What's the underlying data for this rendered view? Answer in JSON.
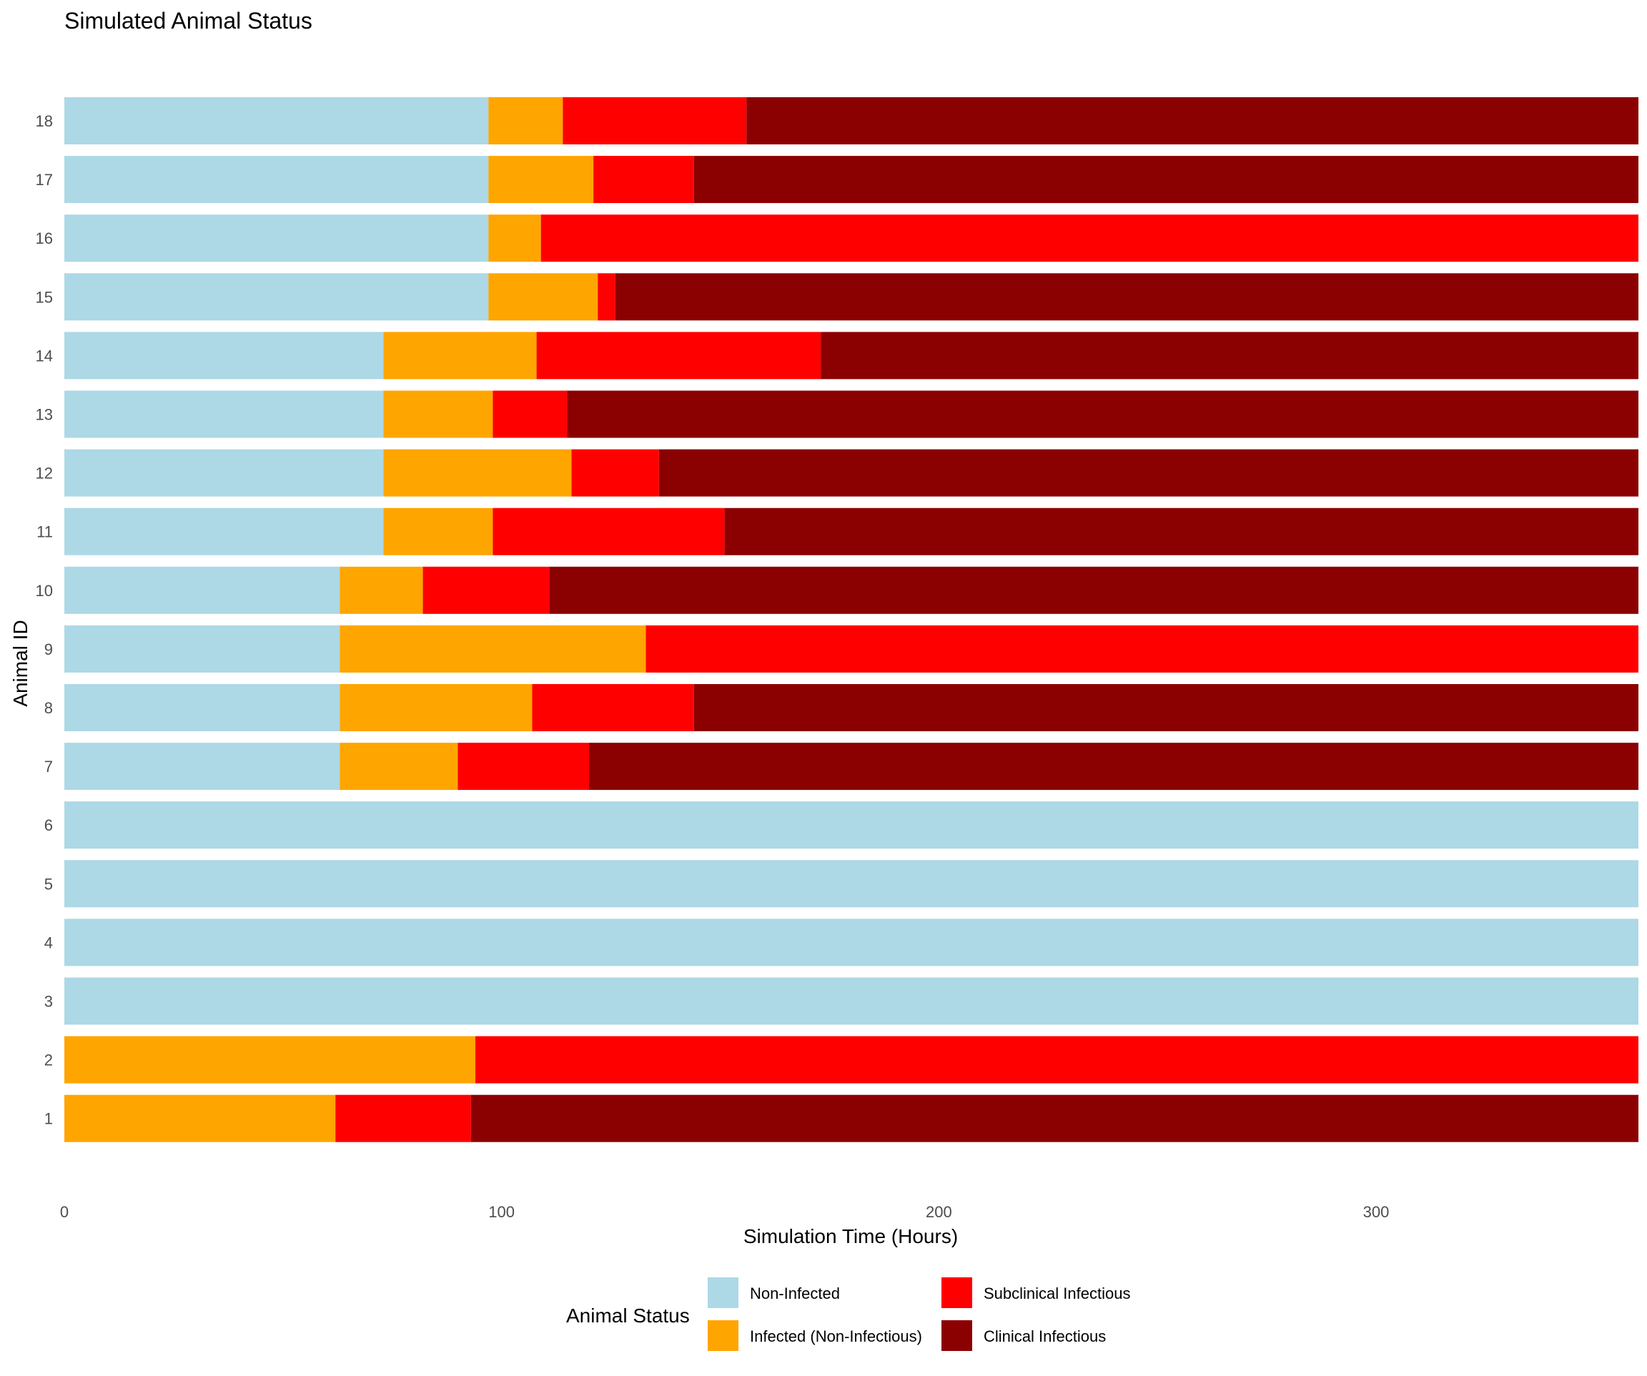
{
  "chart_data": {
    "type": "bar",
    "orientation": "horizontal",
    "stacked": true,
    "title": "Simulated Animal Status",
    "xlabel": "Simulation Time (Hours)",
    "ylabel": "Animal ID",
    "xlim": [
      0,
      360
    ],
    "xticks": [
      0,
      100,
      200,
      300
    ],
    "grid": false,
    "legend": {
      "title": "Animal Status",
      "placement": "bottom",
      "entries": [
        {
          "key": "non_infected",
          "label": "Non-Infected",
          "color": "#ADD8E6"
        },
        {
          "key": "infected_non_infectious",
          "label": "Infected (Non-Infectious)",
          "color": "#FFA500"
        },
        {
          "key": "subclinical_infectious",
          "label": "Subclinical Infectious",
          "color": "#FF0000"
        },
        {
          "key": "clinical_infectious",
          "label": "Clinical Infectious",
          "color": "#8B0000"
        }
      ]
    },
    "categories": [
      "1",
      "2",
      "3",
      "4",
      "5",
      "6",
      "7",
      "8",
      "9",
      "10",
      "11",
      "12",
      "13",
      "14",
      "15",
      "16",
      "17",
      "18"
    ],
    "animals": [
      {
        "id": "1",
        "segments": [
          {
            "status": "infected_non_infectious",
            "start": 0,
            "end": 62
          },
          {
            "status": "subclinical_infectious",
            "start": 62,
            "end": 93
          },
          {
            "status": "clinical_infectious",
            "start": 93,
            "end": 360
          }
        ]
      },
      {
        "id": "2",
        "segments": [
          {
            "status": "infected_non_infectious",
            "start": 0,
            "end": 94
          },
          {
            "status": "subclinical_infectious",
            "start": 94,
            "end": 360
          }
        ]
      },
      {
        "id": "3",
        "segments": [
          {
            "status": "non_infected",
            "start": 0,
            "end": 360
          }
        ]
      },
      {
        "id": "4",
        "segments": [
          {
            "status": "non_infected",
            "start": 0,
            "end": 360
          }
        ]
      },
      {
        "id": "5",
        "segments": [
          {
            "status": "non_infected",
            "start": 0,
            "end": 360
          }
        ]
      },
      {
        "id": "6",
        "segments": [
          {
            "status": "non_infected",
            "start": 0,
            "end": 360
          }
        ]
      },
      {
        "id": "7",
        "segments": [
          {
            "status": "non_infected",
            "start": 0,
            "end": 63
          },
          {
            "status": "infected_non_infectious",
            "start": 63,
            "end": 90
          },
          {
            "status": "subclinical_infectious",
            "start": 90,
            "end": 120
          },
          {
            "status": "clinical_infectious",
            "start": 120,
            "end": 360
          }
        ]
      },
      {
        "id": "8",
        "segments": [
          {
            "status": "non_infected",
            "start": 0,
            "end": 63
          },
          {
            "status": "infected_non_infectious",
            "start": 63,
            "end": 107
          },
          {
            "status": "subclinical_infectious",
            "start": 107,
            "end": 144
          },
          {
            "status": "clinical_infectious",
            "start": 144,
            "end": 360
          }
        ]
      },
      {
        "id": "9",
        "segments": [
          {
            "status": "non_infected",
            "start": 0,
            "end": 63
          },
          {
            "status": "infected_non_infectious",
            "start": 63,
            "end": 133
          },
          {
            "status": "subclinical_infectious",
            "start": 133,
            "end": 360
          }
        ]
      },
      {
        "id": "10",
        "segments": [
          {
            "status": "non_infected",
            "start": 0,
            "end": 63
          },
          {
            "status": "infected_non_infectious",
            "start": 63,
            "end": 82
          },
          {
            "status": "subclinical_infectious",
            "start": 82,
            "end": 111
          },
          {
            "status": "clinical_infectious",
            "start": 111,
            "end": 360
          }
        ]
      },
      {
        "id": "11",
        "segments": [
          {
            "status": "non_infected",
            "start": 0,
            "end": 73
          },
          {
            "status": "infected_non_infectious",
            "start": 73,
            "end": 98
          },
          {
            "status": "subclinical_infectious",
            "start": 98,
            "end": 151
          },
          {
            "status": "clinical_infectious",
            "start": 151,
            "end": 360
          }
        ]
      },
      {
        "id": "12",
        "segments": [
          {
            "status": "non_infected",
            "start": 0,
            "end": 73
          },
          {
            "status": "infected_non_infectious",
            "start": 73,
            "end": 116
          },
          {
            "status": "subclinical_infectious",
            "start": 116,
            "end": 136
          },
          {
            "status": "clinical_infectious",
            "start": 136,
            "end": 360
          }
        ]
      },
      {
        "id": "13",
        "segments": [
          {
            "status": "non_infected",
            "start": 0,
            "end": 73
          },
          {
            "status": "infected_non_infectious",
            "start": 73,
            "end": 98
          },
          {
            "status": "subclinical_infectious",
            "start": 98,
            "end": 115
          },
          {
            "status": "clinical_infectious",
            "start": 115,
            "end": 360
          }
        ]
      },
      {
        "id": "14",
        "segments": [
          {
            "status": "non_infected",
            "start": 0,
            "end": 73
          },
          {
            "status": "infected_non_infectious",
            "start": 73,
            "end": 108
          },
          {
            "status": "subclinical_infectious",
            "start": 108,
            "end": 173
          },
          {
            "status": "clinical_infectious",
            "start": 173,
            "end": 360
          }
        ]
      },
      {
        "id": "15",
        "segments": [
          {
            "status": "non_infected",
            "start": 0,
            "end": 97
          },
          {
            "status": "infected_non_infectious",
            "start": 97,
            "end": 122
          },
          {
            "status": "subclinical_infectious",
            "start": 122,
            "end": 126
          },
          {
            "status": "clinical_infectious",
            "start": 126,
            "end": 360
          }
        ]
      },
      {
        "id": "16",
        "segments": [
          {
            "status": "non_infected",
            "start": 0,
            "end": 97
          },
          {
            "status": "infected_non_infectious",
            "start": 97,
            "end": 109
          },
          {
            "status": "subclinical_infectious",
            "start": 109,
            "end": 360
          }
        ]
      },
      {
        "id": "17",
        "segments": [
          {
            "status": "non_infected",
            "start": 0,
            "end": 97
          },
          {
            "status": "infected_non_infectious",
            "start": 97,
            "end": 121
          },
          {
            "status": "subclinical_infectious",
            "start": 121,
            "end": 144
          },
          {
            "status": "clinical_infectious",
            "start": 144,
            "end": 360
          }
        ]
      },
      {
        "id": "18",
        "segments": [
          {
            "status": "non_infected",
            "start": 0,
            "end": 97
          },
          {
            "status": "infected_non_infectious",
            "start": 97,
            "end": 114
          },
          {
            "status": "subclinical_infectious",
            "start": 114,
            "end": 156
          },
          {
            "status": "clinical_infectious",
            "start": 156,
            "end": 360
          }
        ]
      }
    ]
  }
}
